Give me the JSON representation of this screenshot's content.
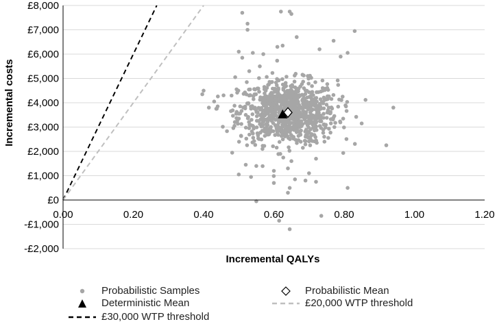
{
  "chart_data": {
    "type": "scatter",
    "title": "",
    "xlabel": "Incremental QALYs",
    "ylabel": "Incremental costs",
    "xlim": [
      0,
      1.2
    ],
    "ylim": [
      -2000,
      8000
    ],
    "x_ticks": [
      0,
      0.2,
      0.4,
      0.6,
      0.8,
      1.0,
      1.2
    ],
    "x_tick_labels": [
      "0.00",
      "0.20",
      "0.40",
      "0.60",
      "0.80",
      "1.00",
      "1.20"
    ],
    "y_ticks": [
      -2000,
      -1000,
      0,
      1000,
      2000,
      3000,
      4000,
      5000,
      6000,
      7000,
      8000
    ],
    "y_tick_labels": [
      "-£2,000",
      "-£1,000",
      "£0",
      "£1,000",
      "£2,000",
      "£3,000",
      "£4,000",
      "£5,000",
      "£6,000",
      "£7,000",
      "£8,000"
    ],
    "grid": "horizontal",
    "probabilistic_samples": {
      "name": "Probabilistic Samples",
      "color": "#a6a6a6",
      "cluster_center": [
        0.64,
        3600
      ],
      "cluster_sd": [
        0.07,
        650
      ],
      "n_cluster": 900,
      "outliers": [
        [
          0.51,
          7700
        ],
        [
          0.62,
          7750
        ],
        [
          0.645,
          7750
        ],
        [
          0.65,
          7650
        ],
        [
          0.525,
          7250
        ],
        [
          0.525,
          7000
        ],
        [
          0.665,
          6700
        ],
        [
          0.83,
          6950
        ],
        [
          0.77,
          6550
        ],
        [
          0.61,
          6300
        ],
        [
          0.625,
          6350
        ],
        [
          0.5,
          6100
        ],
        [
          0.54,
          6050
        ],
        [
          0.57,
          6000
        ],
        [
          0.73,
          6200
        ],
        [
          0.81,
          6050
        ],
        [
          0.79,
          5900
        ],
        [
          0.51,
          5850
        ],
        [
          0.56,
          5500
        ],
        [
          0.53,
          5300
        ],
        [
          0.49,
          5050
        ],
        [
          0.4,
          4500
        ],
        [
          0.43,
          4050
        ],
        [
          0.44,
          3850
        ],
        [
          0.415,
          3800
        ],
        [
          0.94,
          3800
        ],
        [
          0.92,
          2250
        ],
        [
          0.85,
          3150
        ],
        [
          0.52,
          1450
        ],
        [
          0.55,
          1400
        ],
        [
          0.5,
          1050
        ],
        [
          0.535,
          950
        ],
        [
          0.6,
          1200
        ],
        [
          0.64,
          1300
        ],
        [
          0.7,
          1100
        ],
        [
          0.69,
          800
        ],
        [
          0.72,
          750
        ],
        [
          0.66,
          850
        ],
        [
          0.6,
          700
        ],
        [
          0.645,
          500
        ],
        [
          0.81,
          500
        ],
        [
          0.64,
          300
        ],
        [
          0.55,
          -50
        ],
        [
          0.615,
          -850
        ],
        [
          0.645,
          -1200
        ],
        [
          0.735,
          -650
        ],
        [
          0.72,
          1700
        ],
        [
          0.65,
          1600
        ]
      ]
    },
    "probabilistic_mean": {
      "name": "Probabilistic Mean",
      "x": 0.64,
      "y": 3600
    },
    "deterministic_mean": {
      "name": "Deterministic Mean",
      "x": 0.625,
      "y": 3500
    },
    "thresholds": [
      {
        "name": "£30,000 WTP threshold",
        "slope": 30000,
        "color": "#000000",
        "style": "dashed"
      },
      {
        "name": "£20,000 WTP threshold",
        "slope": 20000,
        "color": "#bfbfbf",
        "style": "dashed"
      }
    ]
  },
  "legend": {
    "probabilistic_samples": "Probabilistic Samples",
    "probabilistic_mean": "Probabilistic Mean",
    "deterministic_mean": "Deterministic Mean",
    "wtp_20000": "£20,000 WTP threshold",
    "wtp_30000": "£30,000 WTP threshold"
  }
}
